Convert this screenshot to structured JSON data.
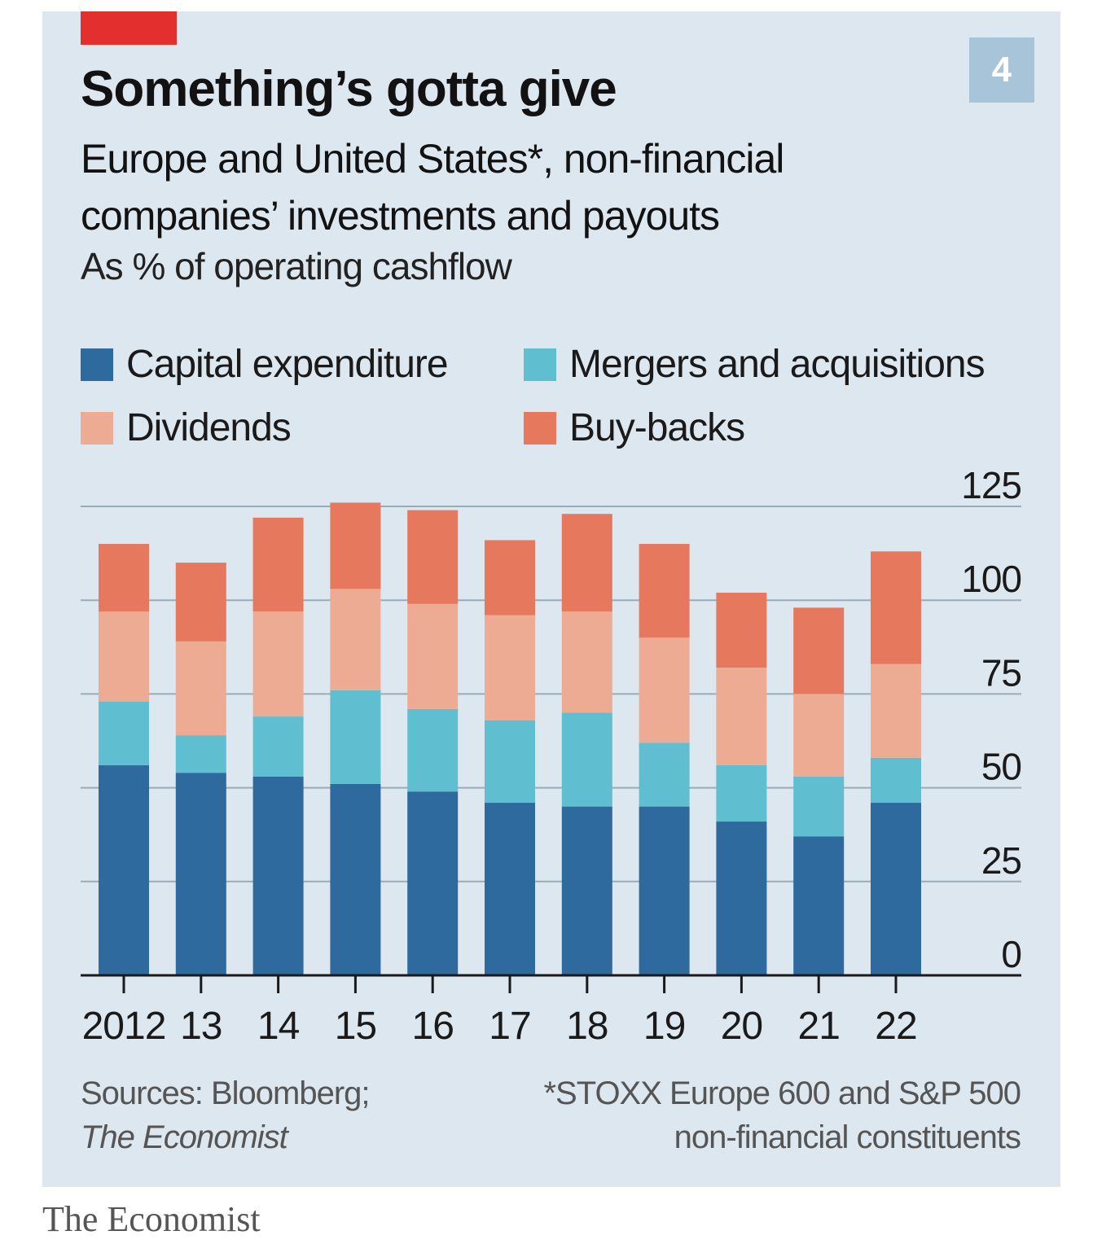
{
  "badge": "4",
  "title": "Something’s gotta give",
  "subtitle": "Europe and United States*, non-financial companies’ investments and payouts",
  "unit": "As % of operating cashflow",
  "colors": {
    "panel": "#dde7ef",
    "red_tab": "#e3302f",
    "capex": "#2e6a9e",
    "mna": "#5fbfd1",
    "dividends": "#eeab93",
    "buybacks": "#e5785d",
    "grid": "#9aabb8"
  },
  "legend": [
    {
      "label": "Capital expenditure",
      "color": "#2e6a9e"
    },
    {
      "label": "Mergers and acquisitions",
      "color": "#5fbfd1"
    },
    {
      "label": "Dividends",
      "color": "#eeab93"
    },
    {
      "label": "Buy-backs",
      "color": "#e5785d"
    }
  ],
  "chart_data": {
    "type": "bar",
    "stacked": true,
    "categories": [
      "2012",
      "13",
      "14",
      "15",
      "16",
      "17",
      "18",
      "19",
      "20",
      "21",
      "22"
    ],
    "series": [
      {
        "name": "Capital expenditure",
        "values": [
          56,
          54,
          53,
          51,
          49,
          46,
          45,
          45,
          41,
          37,
          46
        ]
      },
      {
        "name": "Mergers and acquisitions",
        "values": [
          17,
          10,
          16,
          25,
          22,
          22,
          25,
          17,
          15,
          16,
          12
        ]
      },
      {
        "name": "Dividends",
        "values": [
          24,
          25,
          28,
          27,
          28,
          28,
          27,
          28,
          26,
          22,
          25
        ]
      },
      {
        "name": "Buy-backs",
        "values": [
          18,
          21,
          25,
          23,
          25,
          20,
          26,
          25,
          20,
          23,
          30
        ]
      }
    ],
    "y_ticks": [
      0,
      25,
      50,
      75,
      100,
      125
    ],
    "ylim": [
      0,
      125
    ],
    "y_axis_side": "right",
    "grid": true,
    "legend_placement": "top"
  },
  "footer": {
    "sources_prefix": "Sources: Bloomberg;",
    "sources_italic": "The Economist",
    "note_line1": "*STOXX Europe 600 and S&P 500",
    "note_line2": "non-financial constituents"
  },
  "brand": "The Economist"
}
